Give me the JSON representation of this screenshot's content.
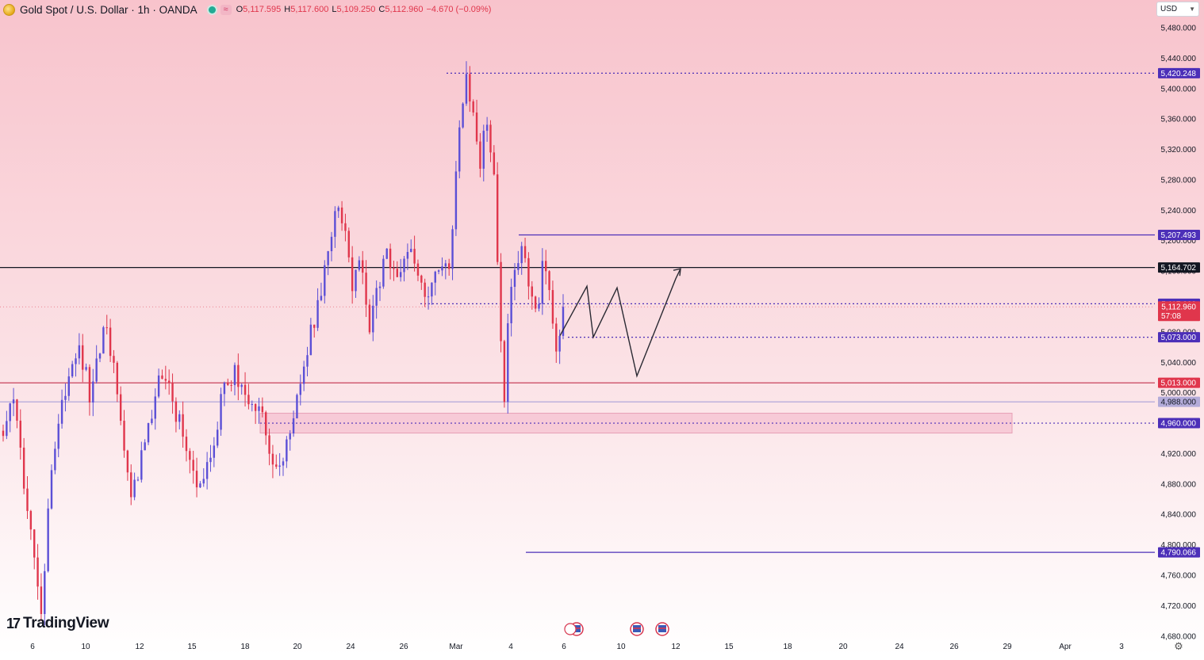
{
  "header": {
    "symbol_title": "Gold Spot / U.S. Dollar · 1h · OANDA",
    "open_label": "O",
    "open_value": "5,117.595",
    "high_label": "H",
    "high_value": "5,117.600",
    "low_label": "L",
    "low_value": "5,109.250",
    "close_label": "C",
    "close_value": "5,112.960",
    "change_value": "−4.670 (−0.09%)"
  },
  "currency": {
    "label": "USD"
  },
  "logo": {
    "text": "TradingView"
  },
  "icons": {
    "symbol": "gold-coin-icon",
    "status": "market-open-dot-icon",
    "settings": "gear-icon"
  },
  "colors": {
    "down": "#e0364c",
    "up": "#5b4fd6",
    "line_purple": "#4c2fb8",
    "band": "#f3b2c6"
  },
  "chart_data": {
    "type": "candlestick",
    "title": "",
    "y_range": [
      4680,
      5500
    ],
    "y_ticks": [
      "5,480.000",
      "5,440.000",
      "5,400.000",
      "5,360.000",
      "5,320.000",
      "5,280.000",
      "5,240.000",
      "5,200.000",
      "5,160.000",
      "5,120.000",
      "5,080.000",
      "5,040.000",
      "5,000.000",
      "4,960.000",
      "4,920.000",
      "4,880.000",
      "4,840.000",
      "4,800.000",
      "4,760.000",
      "4,720.000",
      "4,680.000"
    ],
    "x_ticks": [
      "6",
      "10",
      "12",
      "15",
      "18",
      "20",
      "24",
      "26",
      "Mar",
      "4",
      "6",
      "10",
      "12",
      "15",
      "18",
      "20",
      "24",
      "26",
      "29",
      "Apr",
      "3"
    ],
    "price_path": [
      [
        0,
        4950
      ],
      [
        3,
        5000
      ],
      [
        6,
        4880
      ],
      [
        9,
        4780
      ],
      [
        11,
        4700
      ],
      [
        13,
        4850
      ],
      [
        16,
        4960
      ],
      [
        19,
        5020
      ],
      [
        22,
        5060
      ],
      [
        25,
        5000
      ],
      [
        28,
        5050
      ],
      [
        30,
        5100
      ],
      [
        33,
        4990
      ],
      [
        37,
        4860
      ],
      [
        40,
        4920
      ],
      [
        43,
        4960
      ],
      [
        45,
        5010
      ],
      [
        48,
        5000
      ],
      [
        51,
        4960
      ],
      [
        54,
        4900
      ],
      [
        57,
        4880
      ],
      [
        60,
        4910
      ],
      [
        63,
        4990
      ],
      [
        67,
        5030
      ],
      [
        70,
        5000
      ],
      [
        73,
        4980
      ],
      [
        76,
        4950
      ],
      [
        79,
        4890
      ],
      [
        82,
        4930
      ],
      [
        86,
        5000
      ],
      [
        89,
        5080
      ],
      [
        92,
        5140
      ],
      [
        95,
        5200
      ],
      [
        97,
        5250
      ],
      [
        99,
        5200
      ],
      [
        101,
        5140
      ],
      [
        103,
        5170
      ],
      [
        106,
        5090
      ],
      [
        108,
        5140
      ],
      [
        111,
        5180
      ],
      [
        114,
        5140
      ],
      [
        117,
        5190
      ],
      [
        120,
        5150
      ],
      [
        123,
        5120
      ],
      [
        126,
        5170
      ],
      [
        129,
        5160
      ],
      [
        131,
        5300
      ],
      [
        133,
        5380
      ],
      [
        134,
        5420
      ],
      [
        136,
        5370
      ],
      [
        138,
        5300
      ],
      [
        140,
        5360
      ],
      [
        142,
        5290
      ],
      [
        143,
        5180
      ],
      [
        144,
        5060
      ],
      [
        145,
        5000
      ],
      [
        146,
        5090
      ],
      [
        148,
        5160
      ],
      [
        150,
        5190
      ],
      [
        152,
        5150
      ],
      [
        154,
        5100
      ],
      [
        156,
        5160
      ],
      [
        158,
        5130
      ],
      [
        159,
        5090
      ],
      [
        160,
        5060
      ],
      [
        161,
        5080
      ],
      [
        162,
        5112.96
      ]
    ],
    "candle_count": 163,
    "last_price": "5,112.960",
    "last_price_value": 5112.96,
    "countdown": "57:08",
    "levels": [
      {
        "label": "5,420.248",
        "value": 5420.248,
        "style": "dotted",
        "color": "#4c2fb8"
      },
      {
        "label": "5,207.493",
        "value": 5207.493,
        "style": "solid",
        "color": "#4c2fb8"
      },
      {
        "label": "5,164.702",
        "value": 5164.702,
        "style": "solid",
        "color": "#131722"
      },
      {
        "label": "5,117.000",
        "value": 5117.0,
        "style": "dotted",
        "color": "#4c2fb8"
      },
      {
        "label": "5,073.000",
        "value": 5073.0,
        "style": "dotted",
        "color": "#4c2fb8"
      },
      {
        "label": "5,013.000",
        "value": 5013.0,
        "style": "solid",
        "color": "#c2304d"
      },
      {
        "label": "4,988.000",
        "value": 4988.0,
        "style": "solid",
        "color": "#a9a0d8"
      },
      {
        "label": "4,960.000",
        "value": 4960.0,
        "style": "dotted",
        "color": "#4c2fb8"
      },
      {
        "label": "4,790.066",
        "value": 4790.066,
        "style": "solid",
        "color": "#4c2fb8"
      }
    ],
    "zone": {
      "low": 4948,
      "high": 4972
    },
    "projection": [
      [
        5075,
        0
      ],
      [
        5140,
        1
      ],
      [
        5073,
        2
      ],
      [
        5138,
        3
      ],
      [
        5022,
        4
      ],
      [
        5150,
        5
      ],
      [
        5163,
        6
      ]
    ],
    "grid": false,
    "legend": "none"
  }
}
